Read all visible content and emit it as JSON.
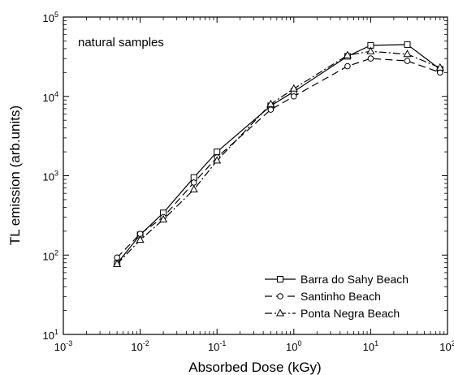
{
  "chart_data": {
    "type": "line",
    "title": "",
    "xlabel": "Absorbed Dose (kGy)",
    "ylabel": "TL emission (arb.units)",
    "xscale": "log",
    "yscale": "log",
    "xlim": [
      0.001,
      100
    ],
    "ylim": [
      10,
      100000
    ],
    "x_ticks": [
      {
        "base": "10",
        "exp": "-3",
        "value": 0.001
      },
      {
        "base": "10",
        "exp": "-2",
        "value": 0.01
      },
      {
        "base": "10",
        "exp": "-1",
        "value": 0.1
      },
      {
        "base": "10",
        "exp": "0",
        "value": 1
      },
      {
        "base": "10",
        "exp": "1",
        "value": 10
      },
      {
        "base": "10",
        "exp": "2",
        "value": 100
      }
    ],
    "y_ticks": [
      {
        "base": "10",
        "exp": "1",
        "value": 10
      },
      {
        "base": "10",
        "exp": "2",
        "value": 100
      },
      {
        "base": "10",
        "exp": "3",
        "value": 1000
      },
      {
        "base": "10",
        "exp": "4",
        "value": 10000
      },
      {
        "base": "10",
        "exp": "5",
        "value": 100000
      }
    ],
    "annotation": "natural samples",
    "legend_position": "bottom-right",
    "grid": false,
    "series": [
      {
        "name": "Barra do Sahy Beach",
        "marker": "square",
        "line_style": "solid",
        "x": [
          0.005,
          0.01,
          0.02,
          0.05,
          0.1,
          0.5,
          1,
          5,
          10,
          30,
          80
        ],
        "y": [
          78,
          180,
          340,
          950,
          2000,
          7600,
          11500,
          32000,
          44000,
          45000,
          22000
        ]
      },
      {
        "name": "Santinho Beach",
        "marker": "circle",
        "line_style": "dashed",
        "x": [
          0.005,
          0.01,
          0.02,
          0.05,
          0.1,
          0.5,
          1,
          5,
          10,
          30,
          80
        ],
        "y": [
          93,
          185,
          300,
          820,
          1700,
          6800,
          10000,
          24000,
          30000,
          28000,
          20000
        ]
      },
      {
        "name": "Ponta Negra Beach",
        "marker": "triangle",
        "line_style": "dash-dot",
        "x": [
          0.005,
          0.01,
          0.02,
          0.05,
          0.1,
          0.5,
          1,
          5,
          10,
          30,
          80
        ],
        "y": [
          77,
          155,
          280,
          670,
          1550,
          8000,
          12500,
          33000,
          37000,
          34000,
          23000
        ]
      }
    ]
  }
}
